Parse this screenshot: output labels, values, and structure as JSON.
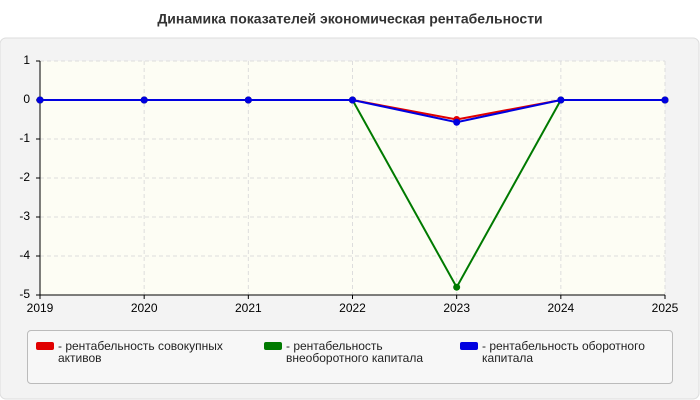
{
  "chart_data": {
    "type": "line",
    "title": "Динамика показателей экономическая рентабельности",
    "x": [
      2019,
      2020,
      2021,
      2022,
      2023,
      2024,
      2025
    ],
    "xlim": [
      2019,
      2025
    ],
    "xticks": [
      2019,
      2020,
      2021,
      2022,
      2023,
      2024,
      2025
    ],
    "ylim": [
      -5,
      1
    ],
    "yticks": [
      1,
      0,
      -1,
      -2,
      -3,
      -4,
      -5
    ],
    "grid": true,
    "series": [
      {
        "name": "- рентабельность совокупных активов",
        "color": "#e00000",
        "values": [
          0,
          0,
          0,
          0,
          -0.5,
          0,
          0
        ]
      },
      {
        "name": "- рентабельность внеоборотного капитала",
        "color": "#007a00",
        "values": [
          0,
          0,
          0,
          0,
          -4.8,
          0,
          0
        ]
      },
      {
        "name": "- рентабельность оборотного капитала",
        "color": "#0000e0",
        "values": [
          0,
          0,
          0,
          0,
          -0.57,
          0,
          0
        ]
      }
    ]
  }
}
